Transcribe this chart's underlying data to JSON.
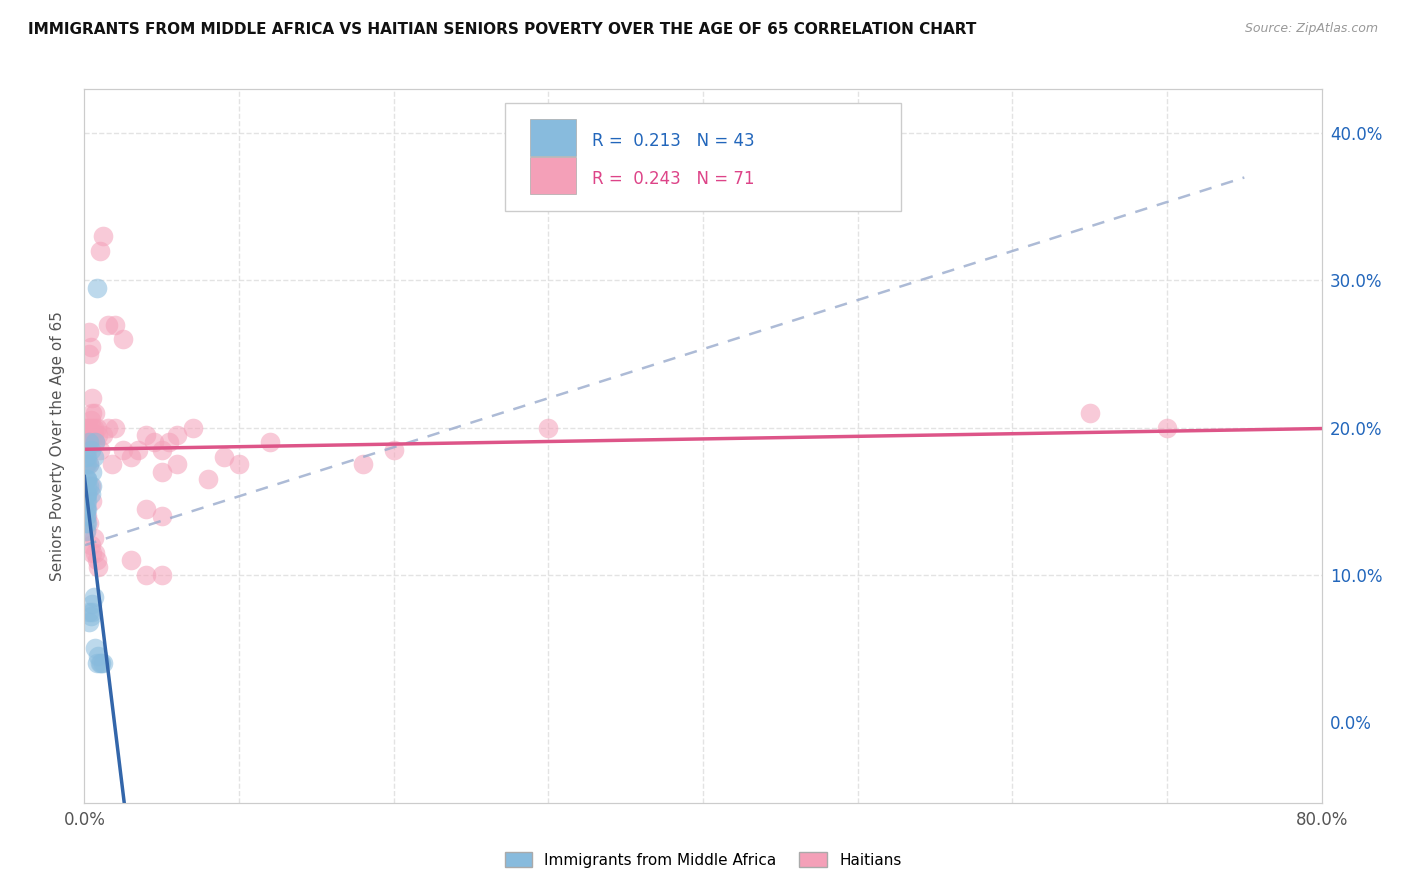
{
  "title": "IMMIGRANTS FROM MIDDLE AFRICA VS HAITIAN SENIORS POVERTY OVER THE AGE OF 65 CORRELATION CHART",
  "source": "Source: ZipAtlas.com",
  "ylabel": "Seniors Poverty Over the Age of 65",
  "legend_label1": "Immigrants from Middle Africa",
  "legend_label2": "Haitians",
  "R1": "0.213",
  "N1": "43",
  "R2": "0.243",
  "N2": "71",
  "color_blue": "#88bbdd",
  "color_pink": "#f4a0b8",
  "color_blue_line": "#3366aa",
  "color_pink_line": "#dd5588",
  "color_dashed": "#99aacc",
  "background": "#ffffff",
  "grid_color": "#dddddd",
  "xlim": [
    0.0,
    0.8
  ],
  "ylim": [
    -0.055,
    0.43
  ],
  "xticks": [
    0.0,
    0.1,
    0.2,
    0.3,
    0.4,
    0.5,
    0.6,
    0.7,
    0.8
  ],
  "yticks": [
    0.0,
    0.1,
    0.2,
    0.3,
    0.4
  ],
  "blue_x": [
    0.0008,
    0.001,
    0.0012,
    0.0015,
    0.002,
    0.0008,
    0.001,
    0.0012,
    0.0015,
    0.002,
    0.0008,
    0.001,
    0.0012,
    0.0015,
    0.002,
    0.001,
    0.0015,
    0.002,
    0.003,
    0.002,
    0.001,
    0.002,
    0.003,
    0.004,
    0.005,
    0.003,
    0.004,
    0.005,
    0.006,
    0.007,
    0.003,
    0.005,
    0.008,
    0.004,
    0.003,
    0.006,
    0.008,
    0.01,
    0.011,
    0.012,
    0.009,
    0.007,
    0.005
  ],
  "blue_y": [
    0.155,
    0.145,
    0.135,
    0.16,
    0.155,
    0.14,
    0.15,
    0.13,
    0.165,
    0.175,
    0.145,
    0.18,
    0.14,
    0.135,
    0.15,
    0.155,
    0.165,
    0.145,
    0.16,
    0.18,
    0.165,
    0.155,
    0.175,
    0.155,
    0.16,
    0.19,
    0.185,
    0.17,
    0.18,
    0.19,
    0.075,
    0.08,
    0.295,
    0.072,
    0.068,
    0.085,
    0.04,
    0.04,
    0.04,
    0.04,
    0.045,
    0.05,
    0.075
  ],
  "pink_x": [
    0.0008,
    0.001,
    0.0012,
    0.001,
    0.002,
    0.0015,
    0.002,
    0.003,
    0.002,
    0.003,
    0.003,
    0.004,
    0.003,
    0.004,
    0.005,
    0.004,
    0.005,
    0.006,
    0.005,
    0.007,
    0.006,
    0.008,
    0.007,
    0.009,
    0.01,
    0.012,
    0.015,
    0.018,
    0.02,
    0.025,
    0.03,
    0.035,
    0.04,
    0.045,
    0.05,
    0.055,
    0.06,
    0.07,
    0.04,
    0.05,
    0.05,
    0.06,
    0.08,
    0.09,
    0.1,
    0.12,
    0.18,
    0.2,
    0.3,
    0.65,
    0.7,
    0.001,
    0.002,
    0.003,
    0.004,
    0.005,
    0.003,
    0.004,
    0.005,
    0.006,
    0.007,
    0.008,
    0.009,
    0.01,
    0.012,
    0.015,
    0.02,
    0.025,
    0.03,
    0.04,
    0.05
  ],
  "pink_y": [
    0.2,
    0.195,
    0.185,
    0.175,
    0.2,
    0.19,
    0.185,
    0.2,
    0.19,
    0.195,
    0.25,
    0.255,
    0.265,
    0.205,
    0.2,
    0.195,
    0.21,
    0.2,
    0.22,
    0.19,
    0.195,
    0.2,
    0.21,
    0.195,
    0.185,
    0.195,
    0.2,
    0.175,
    0.2,
    0.185,
    0.18,
    0.185,
    0.195,
    0.19,
    0.185,
    0.19,
    0.195,
    0.2,
    0.145,
    0.14,
    0.17,
    0.175,
    0.165,
    0.18,
    0.175,
    0.19,
    0.175,
    0.185,
    0.2,
    0.21,
    0.2,
    0.13,
    0.14,
    0.135,
    0.12,
    0.115,
    0.175,
    0.16,
    0.15,
    0.125,
    0.115,
    0.11,
    0.105,
    0.32,
    0.33,
    0.27,
    0.27,
    0.26,
    0.11,
    0.1,
    0.1
  ]
}
